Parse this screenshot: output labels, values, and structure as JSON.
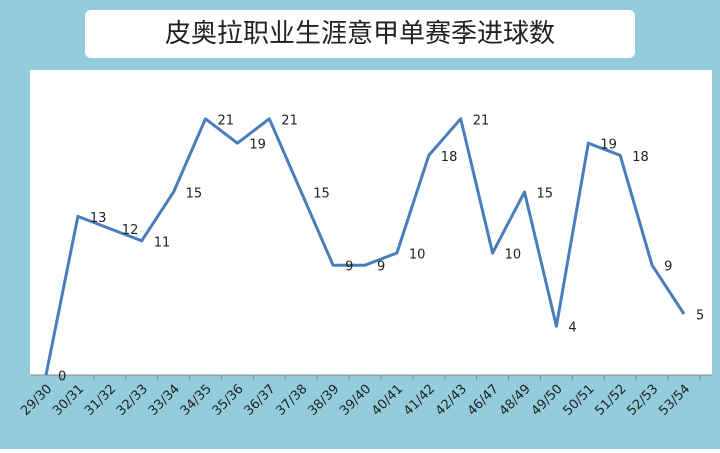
{
  "chart_data": {
    "type": "line",
    "title": "皮奥拉职业生涯意甲单赛季进球数",
    "categories": [
      "29/30",
      "30/31",
      "31/32",
      "32/33",
      "33/34",
      "34/35",
      "35/36",
      "36/37",
      "37/38",
      "38/39",
      "39/40",
      "40/41",
      "41/42",
      "42/43",
      "46/47",
      "48/49",
      "49/50",
      "50/51",
      "51/52",
      "52/53",
      "53/54"
    ],
    "values": [
      0,
      13,
      12,
      11,
      15,
      21,
      19,
      21,
      15,
      9,
      9,
      10,
      18,
      21,
      10,
      15,
      4,
      19,
      18,
      9,
      5
    ],
    "color": "#4a7ebb",
    "ylim": [
      0,
      25
    ]
  }
}
